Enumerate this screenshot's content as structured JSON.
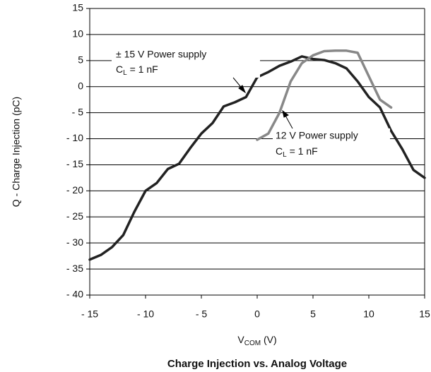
{
  "chart_data": {
    "type": "line",
    "title": "Charge Injection vs. Analog Voltage",
    "ylabel": "Q - Charge Injection (pC)",
    "xlabel": {
      "text": "V",
      "sub": "COM",
      "rest": " (V)"
    },
    "xlim": [
      -15,
      15
    ],
    "ylim": [
      -40,
      15
    ],
    "xticks": [
      {
        "value": -15,
        "label": "- 15"
      },
      {
        "value": -10,
        "label": "- 10"
      },
      {
        "value": -5,
        "label": "- 5"
      },
      0,
      5,
      10,
      15
    ],
    "yticks": [
      {
        "value": -40,
        "label": "- 40"
      },
      {
        "value": -35,
        "label": "- 35"
      },
      {
        "value": -30,
        "label": "- 30"
      },
      {
        "value": -25,
        "label": "- 25"
      },
      {
        "value": -20,
        "label": "- 20"
      },
      {
        "value": -15,
        "label": "- 15"
      },
      {
        "value": -10,
        "label": "- 10"
      },
      {
        "value": -5,
        "label": "- 5"
      },
      0,
      5,
      10,
      15
    ],
    "grid": true,
    "series": [
      {
        "name": "± 15 V Power supply",
        "color": "#222222",
        "x": [
          -15,
          -14,
          -13,
          -12,
          -11,
          -10,
          -9,
          -8,
          -7,
          -6,
          -5,
          -4,
          -3,
          -2,
          -1,
          0,
          1,
          2,
          3,
          4,
          5,
          6,
          7,
          8,
          9,
          10,
          11,
          12,
          13,
          14,
          15
        ],
        "values": [
          -33.2,
          -32.3,
          -30.8,
          -28.5,
          -24,
          -20,
          -18.5,
          -15.8,
          -14.8,
          -11.8,
          -9,
          -7,
          -3.8,
          -3,
          -2,
          1.8,
          2.8,
          4,
          4.8,
          5.8,
          5.3,
          5.1,
          4.5,
          3.5,
          1,
          -2,
          -4,
          -8.5,
          -12,
          -16,
          -17.5
        ]
      },
      {
        "name": "12 V Power supply",
        "color": "#888888",
        "x": [
          0,
          1,
          2,
          3,
          4,
          5,
          6,
          7,
          8,
          9,
          10,
          11,
          12
        ],
        "values": [
          -10.2,
          -9,
          -5,
          1,
          4.5,
          6,
          6.8,
          6.9,
          6.9,
          6.5,
          2,
          -2.5,
          -4
        ]
      }
    ],
    "annotations": [
      {
        "line2": [
          "C",
          "L",
          " = 1 nF"
        ]
      },
      {
        "line2": [
          "C",
          "L",
          " = 1 nF"
        ]
      }
    ]
  }
}
